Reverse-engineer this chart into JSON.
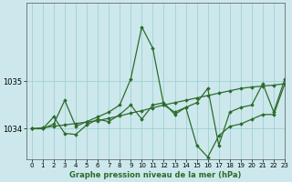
{
  "xlabel_label": "Graphe pression niveau de la mer (hPa)",
  "background_color": "#cce8ec",
  "grid_color": "#99cccc",
  "line_color": "#2d6b2d",
  "marker_color": "#2d6b2d",
  "xlim": [
    -0.5,
    23
  ],
  "ylim": [
    1033.35,
    1036.65
  ],
  "yticks": [
    1034,
    1035
  ],
  "xticks": [
    0,
    1,
    2,
    3,
    4,
    5,
    6,
    7,
    8,
    9,
    10,
    11,
    12,
    13,
    14,
    15,
    16,
    17,
    18,
    19,
    20,
    21,
    22,
    23
  ],
  "hours": [
    0,
    1,
    2,
    3,
    4,
    5,
    6,
    7,
    8,
    9,
    10,
    11,
    12,
    13,
    14,
    15,
    16,
    17,
    18,
    19,
    20,
    21,
    22,
    23
  ],
  "series_spike": [
    1034.0,
    1034.0,
    1034.1,
    1034.6,
    1034.05,
    1034.15,
    1034.25,
    1034.35,
    1034.5,
    1035.05,
    1036.15,
    1035.7,
    1034.5,
    1034.35,
    1034.45,
    1034.55,
    1034.85,
    1033.65,
    1034.35,
    1034.45,
    1034.5,
    1034.95,
    1034.35,
    1035.05
  ],
  "series_wavy": [
    1034.0,
    1034.0,
    1034.25,
    1033.9,
    1033.88,
    1034.08,
    1034.2,
    1034.15,
    1034.3,
    1034.5,
    1034.2,
    1034.5,
    1034.55,
    1034.3,
    1034.45,
    1033.65,
    1033.4,
    1033.85,
    1034.05,
    1034.1,
    1034.2,
    1034.3,
    1034.3,
    1034.95
  ],
  "series_trend": [
    1034.0,
    1034.02,
    1034.05,
    1034.08,
    1034.11,
    1034.14,
    1034.17,
    1034.22,
    1034.27,
    1034.33,
    1034.38,
    1034.44,
    1034.5,
    1034.55,
    1034.6,
    1034.65,
    1034.7,
    1034.75,
    1034.8,
    1034.85,
    1034.88,
    1034.9,
    1034.92,
    1034.95
  ]
}
